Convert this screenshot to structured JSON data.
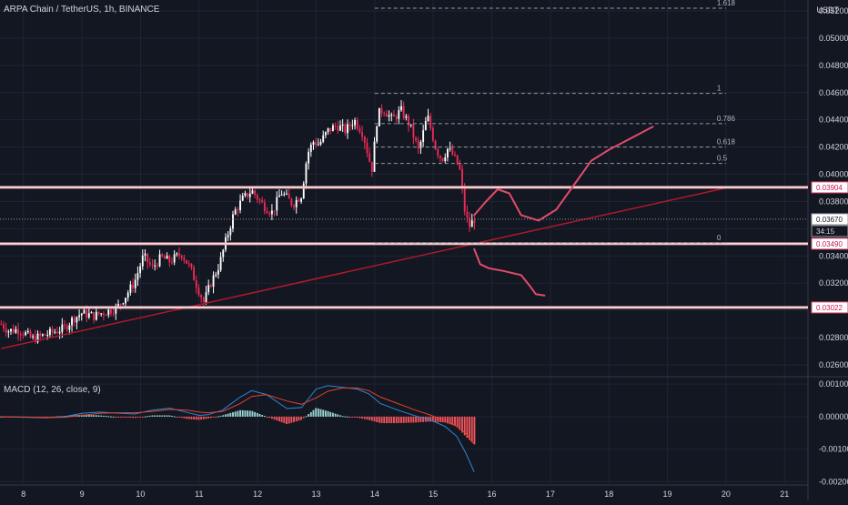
{
  "header": {
    "symbol_title": "ARPA Chain / TetherUS, 1h, BINANCE",
    "currency": "USDT"
  },
  "colors": {
    "bg": "#131722",
    "grid": "#1f2433",
    "up": "#ffffff",
    "down": "#ee2a56",
    "trend": "#b0182a",
    "drawing": "#e04c6a",
    "hline": "#ffffff",
    "hline_border": "#e8a0a8",
    "macd_line": "#2f8ad6",
    "signal_line": "#e2412d",
    "hist_pos": "#9bd3d0",
    "hist_neg": "#f2535a"
  },
  "price_axis": {
    "labels": [
      "0.05200",
      "0.05000",
      "0.04800",
      "0.04600",
      "0.04400",
      "0.04200",
      "0.04000",
      "0.03800",
      "0.03600",
      "0.03400",
      "0.03200",
      "0.03000",
      "0.02800",
      "0.02600"
    ],
    "highlight": [
      {
        "value": "0.03904",
        "kind": "level"
      },
      {
        "value": "0.03670",
        "kind": "current"
      },
      {
        "value": "34:15",
        "kind": "timer"
      },
      {
        "value": "0.03490",
        "kind": "level"
      },
      {
        "value": "0.03022",
        "kind": "level"
      }
    ]
  },
  "macd_axis": {
    "labels": [
      "0.00100",
      "0.00000",
      "-0.00100",
      "-0.00200"
    ]
  },
  "time_axis": {
    "labels": [
      "8",
      "9",
      "10",
      "11",
      "12",
      "13",
      "14",
      "15",
      "16",
      "17",
      "18",
      "19",
      "20",
      "21"
    ]
  },
  "fib": {
    "labels": [
      "1.618",
      "1",
      "0.786",
      "0.618",
      "0.5",
      "0"
    ]
  },
  "macd": {
    "title": "MACD (12, 26, close, 9)"
  },
  "chart_data": {
    "type": "candlestick",
    "title": "ARPA Chain / TetherUS, 1h, BINANCE",
    "x_range": [
      7.6,
      21.4
    ],
    "y_range": [
      0.0252,
      0.0528
    ],
    "price_path": [
      [
        7.62,
        0.029
      ],
      [
        7.75,
        0.0285
      ],
      [
        7.9,
        0.0286
      ],
      [
        8.0,
        0.0284
      ],
      [
        8.15,
        0.0279
      ],
      [
        8.3,
        0.0281
      ],
      [
        8.5,
        0.0284
      ],
      [
        8.7,
        0.0287
      ],
      [
        8.85,
        0.0294
      ],
      [
        9.0,
        0.0298
      ],
      [
        9.2,
        0.0296
      ],
      [
        9.4,
        0.0299
      ],
      [
        9.6,
        0.0302
      ],
      [
        9.75,
        0.0311
      ],
      [
        9.9,
        0.0321
      ],
      [
        10.05,
        0.034
      ],
      [
        10.2,
        0.0331
      ],
      [
        10.35,
        0.0339
      ],
      [
        10.5,
        0.0336
      ],
      [
        10.7,
        0.0342
      ],
      [
        10.85,
        0.0331
      ],
      [
        11.0,
        0.0314
      ],
      [
        11.08,
        0.0306
      ],
      [
        11.2,
        0.032
      ],
      [
        11.35,
        0.0334
      ],
      [
        11.45,
        0.035
      ],
      [
        11.6,
        0.0372
      ],
      [
        11.75,
        0.0382
      ],
      [
        11.9,
        0.0388
      ],
      [
        12.1,
        0.0377
      ],
      [
        12.25,
        0.0372
      ],
      [
        12.4,
        0.0387
      ],
      [
        12.6,
        0.0378
      ],
      [
        12.75,
        0.0385
      ],
      [
        12.85,
        0.0415
      ],
      [
        12.95,
        0.0424
      ],
      [
        13.05,
        0.0422
      ],
      [
        13.2,
        0.0432
      ],
      [
        13.35,
        0.0436
      ],
      [
        13.5,
        0.0432
      ],
      [
        13.65,
        0.044
      ],
      [
        13.8,
        0.043
      ],
      [
        13.95,
        0.0403
      ],
      [
        14.05,
        0.0444
      ],
      [
        14.15,
        0.0448
      ],
      [
        14.3,
        0.044
      ],
      [
        14.45,
        0.0447
      ],
      [
        14.6,
        0.0436
      ],
      [
        14.75,
        0.0417
      ],
      [
        14.9,
        0.0443
      ],
      [
        15.05,
        0.0418
      ],
      [
        15.15,
        0.0411
      ],
      [
        15.25,
        0.0419
      ],
      [
        15.35,
        0.0413
      ],
      [
        15.45,
        0.0404
      ],
      [
        15.55,
        0.0369
      ],
      [
        15.62,
        0.0362
      ],
      [
        15.7,
        0.0367
      ]
    ],
    "levels": [
      0.03904,
      0.0367,
      0.0349,
      0.03022
    ],
    "trend_line": [
      [
        7.62,
        0.0272
      ],
      [
        20.0,
        0.039
      ]
    ],
    "fib": [
      {
        "ratio": "1.618",
        "price": 0.0522
      },
      {
        "ratio": "1",
        "price": 0.04594
      },
      {
        "ratio": "0.786",
        "price": 0.04372
      },
      {
        "ratio": "0.618",
        "price": 0.042
      },
      {
        "ratio": "0.5",
        "price": 0.0408
      },
      {
        "ratio": "0",
        "price": 0.03495
      }
    ],
    "projection_up": [
      [
        15.7,
        0.037
      ],
      [
        15.9,
        0.038
      ],
      [
        16.1,
        0.0389
      ],
      [
        16.3,
        0.0386
      ],
      [
        16.5,
        0.037
      ],
      [
        16.8,
        0.0366
      ],
      [
        17.1,
        0.0374
      ],
      [
        17.4,
        0.0392
      ],
      [
        17.7,
        0.041
      ],
      [
        18.0,
        0.0418
      ],
      [
        18.4,
        0.0427
      ],
      [
        18.75,
        0.0435
      ]
    ],
    "projection_down": [
      [
        15.7,
        0.0345
      ],
      [
        15.8,
        0.0334
      ],
      [
        15.95,
        0.0331
      ],
      [
        16.2,
        0.0329
      ],
      [
        16.5,
        0.0326
      ],
      [
        16.65,
        0.0318
      ],
      [
        16.75,
        0.0312
      ],
      [
        16.9,
        0.0311
      ]
    ],
    "macd": {
      "y_range": [
        -0.0021,
        0.0012
      ],
      "macd_path": [
        [
          7.62,
          0.0
        ],
        [
          8.0,
          -2e-05
        ],
        [
          8.4,
          -4e-05
        ],
        [
          8.7,
          0.0
        ],
        [
          9.0,
          0.0001
        ],
        [
          9.3,
          0.00014
        ],
        [
          9.6,
          0.00011
        ],
        [
          9.9,
          8e-05
        ],
        [
          10.2,
          0.0002
        ],
        [
          10.5,
          0.00026
        ],
        [
          10.8,
          0.00013
        ],
        [
          11.0,
          4e-05
        ],
        [
          11.15,
          6e-05
        ],
        [
          11.4,
          0.0002
        ],
        [
          11.7,
          0.0006
        ],
        [
          11.9,
          0.0008
        ],
        [
          12.15,
          0.00068
        ],
        [
          12.5,
          0.00025
        ],
        [
          12.75,
          0.00028
        ],
        [
          13.0,
          0.00085
        ],
        [
          13.2,
          0.00095
        ],
        [
          13.45,
          0.0009
        ],
        [
          13.7,
          0.00085
        ],
        [
          13.9,
          0.0007
        ],
        [
          14.1,
          0.0004
        ],
        [
          14.4,
          0.0002
        ],
        [
          14.7,
          2e-05
        ],
        [
          14.95,
          -0.0001
        ],
        [
          15.2,
          -0.0003
        ],
        [
          15.4,
          -0.0006
        ],
        [
          15.55,
          -0.0011
        ],
        [
          15.7,
          -0.0017
        ]
      ],
      "signal_path": [
        [
          7.62,
          0.0
        ],
        [
          8.0,
          -1e-05
        ],
        [
          8.4,
          -3e-05
        ],
        [
          8.7,
          -2e-05
        ],
        [
          9.0,
          4e-05
        ],
        [
          9.3,
          0.0001
        ],
        [
          9.6,
          0.00012
        ],
        [
          9.9,
          0.00012
        ],
        [
          10.2,
          0.00016
        ],
        [
          10.5,
          0.00022
        ],
        [
          10.8,
          0.0002
        ],
        [
          11.0,
          0.00014
        ],
        [
          11.15,
          0.00012
        ],
        [
          11.4,
          0.00016
        ],
        [
          11.7,
          0.0004
        ],
        [
          11.9,
          0.00062
        ],
        [
          12.15,
          0.00068
        ],
        [
          12.5,
          0.00048
        ],
        [
          12.75,
          0.00038
        ],
        [
          13.0,
          0.00058
        ],
        [
          13.2,
          0.00078
        ],
        [
          13.45,
          0.00088
        ],
        [
          13.7,
          0.00088
        ],
        [
          13.9,
          0.0008
        ],
        [
          14.1,
          0.0006
        ],
        [
          14.4,
          0.0004
        ],
        [
          14.7,
          0.0002
        ],
        [
          14.95,
          5e-05
        ],
        [
          15.2,
          -0.00012
        ],
        [
          15.4,
          -0.0003
        ],
        [
          15.55,
          -0.0005
        ],
        [
          15.7,
          -0.00085
        ]
      ]
    }
  }
}
